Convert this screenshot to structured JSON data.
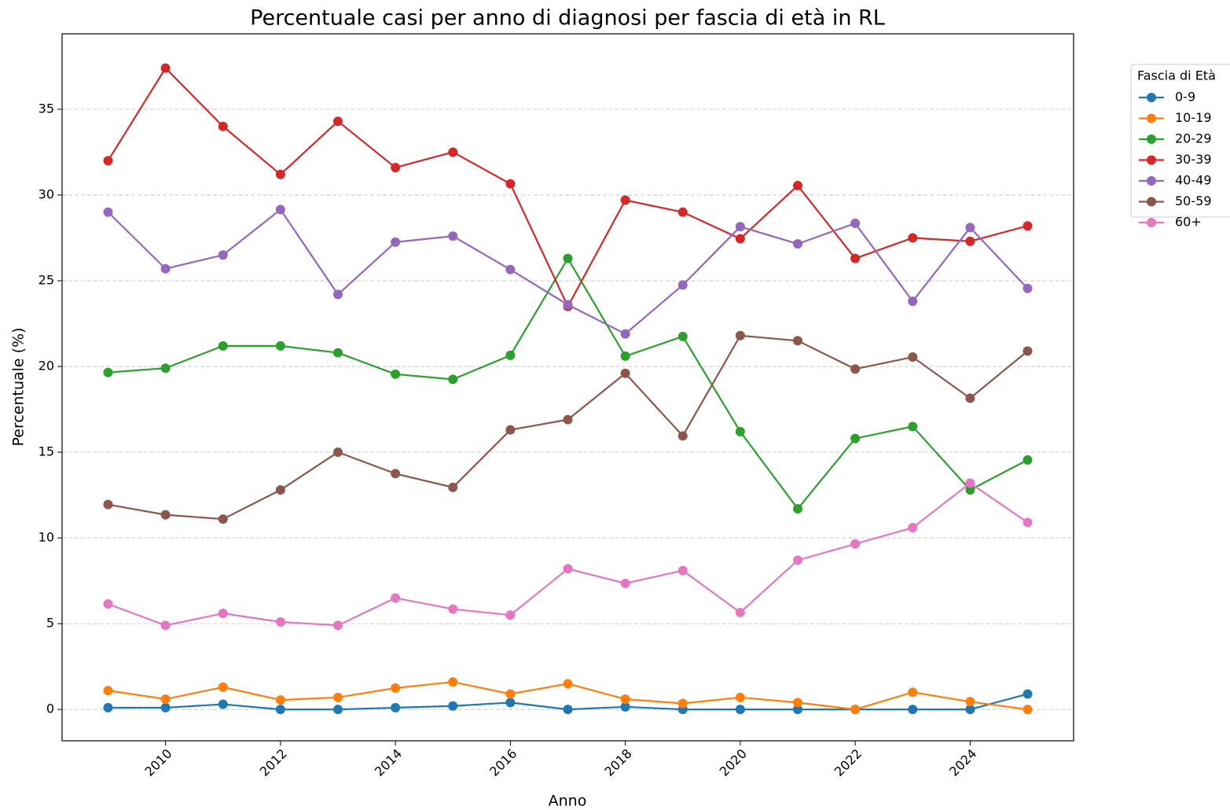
{
  "chart_data": {
    "type": "line",
    "title": "Percentuale casi per anno di diagnosi per fascia di età in RL",
    "x_label": "Anno",
    "y_label": "Percentuale (%)",
    "x": [
      2009,
      2010,
      2011,
      2012,
      2013,
      2014,
      2015,
      2016,
      2017,
      2018,
      2019,
      2020,
      2021,
      2022,
      2023,
      2024,
      2025
    ],
    "xlim": [
      2008.2,
      2025.8
    ],
    "xticks": [
      2010,
      2012,
      2014,
      2016,
      2018,
      2020,
      2022,
      2024
    ],
    "ylim": [
      -1.83,
      39.4
    ],
    "yticks": [
      0,
      5,
      10,
      15,
      20,
      25,
      30,
      35
    ],
    "grid": true,
    "legend_title": "Fascia di Età",
    "legend_position": "outside-right",
    "series": [
      {
        "name": "0-9",
        "color": "#1f77b4",
        "values": [
          0.1,
          0.1,
          0.3,
          0,
          0,
          0.1,
          0.2,
          0.4,
          0,
          0.15,
          0,
          0,
          0,
          0,
          0,
          0,
          0.9
        ]
      },
      {
        "name": "10-19",
        "color": "#ff7f0e",
        "values": [
          1.1,
          0.6,
          1.3,
          0.55,
          0.7,
          1.25,
          1.6,
          0.9,
          1.5,
          0.6,
          0.35,
          0.7,
          0.4,
          0,
          1.0,
          0.45,
          0
        ]
      },
      {
        "name": "20-29",
        "color": "#2ca02c",
        "values": [
          19.65,
          19.9,
          21.2,
          21.2,
          20.8,
          19.55,
          19.25,
          20.65,
          26.3,
          20.6,
          21.75,
          16.2,
          11.7,
          15.8,
          16.5,
          12.8,
          14.55
        ]
      },
      {
        "name": "30-39",
        "color": "#d62728",
        "values": [
          32.0,
          37.4,
          34.0,
          31.2,
          34.3,
          31.6,
          32.5,
          30.65,
          23.5,
          29.7,
          29.0,
          27.45,
          30.55,
          26.3,
          27.5,
          27.3,
          28.2
        ]
      },
      {
        "name": "40-49",
        "color": "#9467bd",
        "values": [
          29.0,
          25.7,
          26.5,
          29.15,
          24.2,
          27.25,
          27.6,
          25.65,
          23.6,
          21.9,
          24.75,
          28.15,
          27.15,
          28.35,
          23.8,
          28.1,
          24.55
        ]
      },
      {
        "name": "50-59",
        "color": "#8c564b",
        "values": [
          11.95,
          11.35,
          11.1,
          12.8,
          15.0,
          13.75,
          12.95,
          16.3,
          16.9,
          19.6,
          15.95,
          21.8,
          21.5,
          19.85,
          20.55,
          18.15,
          20.9
        ]
      },
      {
        "name": "60+",
        "color": "#e377c2",
        "values": [
          6.15,
          4.9,
          5.6,
          5.1,
          4.9,
          6.5,
          5.85,
          5.5,
          8.2,
          7.35,
          8.1,
          5.65,
          8.7,
          9.65,
          10.6,
          13.2,
          10.9
        ]
      }
    ]
  }
}
